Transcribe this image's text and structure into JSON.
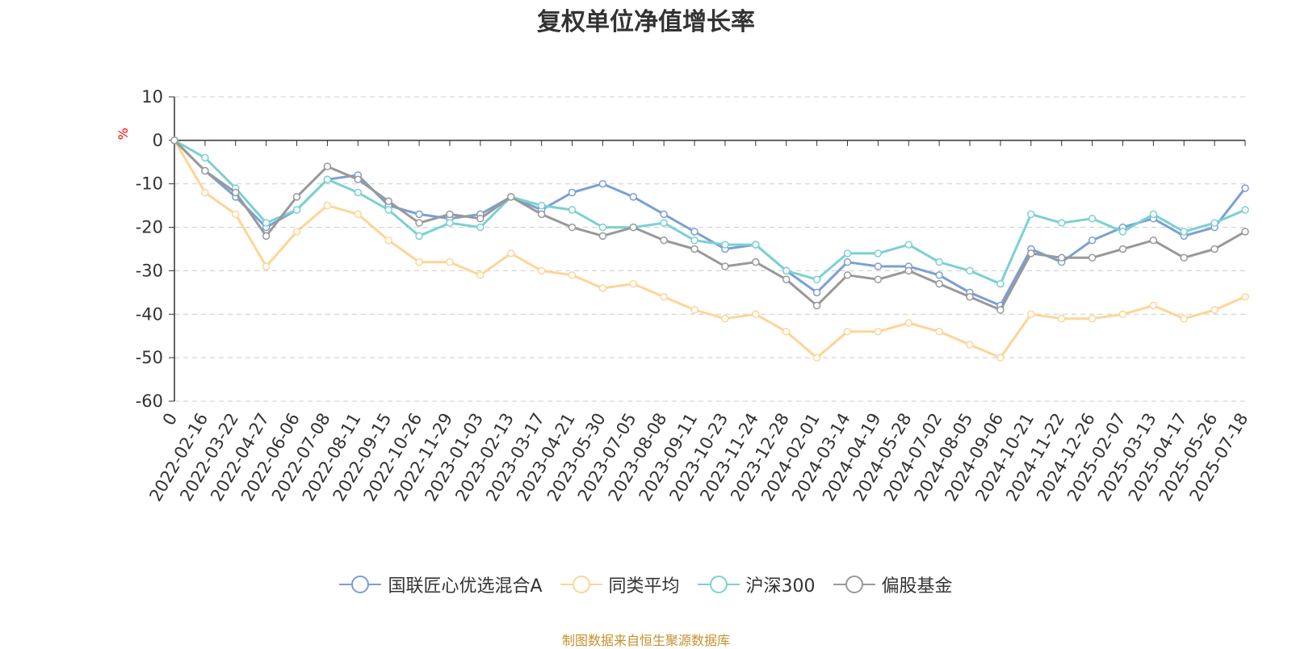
{
  "chart_data": {
    "type": "line",
    "title": "复权单位净值增长率",
    "ylabel": "%",
    "ylim": [
      -60,
      10
    ],
    "yticks": [
      10,
      0,
      -10,
      -20,
      -30,
      -40,
      -50,
      -60
    ],
    "grid": true,
    "legend_position": "bottom-center",
    "x_labels": [
      "0",
      "2022-02-16",
      "2022-03-22",
      "2022-04-27",
      "2022-06-06",
      "2022-07-08",
      "2022-08-11",
      "2022-09-15",
      "2022-10-26",
      "2022-11-29",
      "2023-01-03",
      "2023-02-13",
      "2023-03-17",
      "2023-04-21",
      "2023-05-30",
      "2023-07-05",
      "2023-08-08",
      "2023-09-11",
      "2023-10-23",
      "2023-11-24",
      "2023-12-28",
      "2024-02-01",
      "2024-03-14",
      "2024-04-19",
      "2024-05-28",
      "2024-07-02",
      "2024-08-05",
      "2024-09-06",
      "2024-10-21",
      "2024-11-22",
      "2024-12-26",
      "2025-02-07",
      "2025-03-13",
      "2025-04-17",
      "2025-05-26",
      "2025-07-18"
    ],
    "series": [
      {
        "name": "国联匠心优选混合A",
        "color": "#7b9fd6",
        "values": [
          0,
          -7,
          -13,
          -20,
          -16,
          -9,
          -8,
          -15,
          -17,
          -18,
          -17,
          -13,
          -16,
          -12,
          -10,
          -13,
          -17,
          -21,
          -25,
          -24,
          -30,
          -35,
          -28,
          -29,
          -29,
          -31,
          -35,
          -38,
          -25,
          -28,
          -23,
          -20,
          -18,
          -22,
          -20,
          -11
        ]
      },
      {
        "name": "同类平均",
        "color": "#fdd597",
        "values": [
          0,
          -12,
          -17,
          -29,
          -21,
          -15,
          -17,
          -23,
          -28,
          -28,
          -31,
          -26,
          -30,
          -31,
          -34,
          -33,
          -36,
          -39,
          -41,
          -40,
          -44,
          -50,
          -44,
          -44,
          -42,
          -44,
          -47,
          -50,
          -40,
          -41,
          -41,
          -40,
          -38,
          -41,
          -39,
          -36
        ]
      },
      {
        "name": "沪深300",
        "color": "#7bd1d1",
        "values": [
          0,
          -4,
          -11,
          -19,
          -16,
          -9,
          -12,
          -16,
          -22,
          -19,
          -20,
          -13,
          -15,
          -16,
          -20,
          -20,
          -19,
          -23,
          -24,
          -24,
          -30,
          -32,
          -26,
          -26,
          -24,
          -28,
          -30,
          -33,
          -17,
          -19,
          -18,
          -21,
          -17,
          -21,
          -19,
          -16
        ]
      },
      {
        "name": "偏股基金",
        "color": "#999999",
        "values": [
          0,
          -7,
          -12,
          -22,
          -13,
          -6,
          -9,
          -14,
          -19,
          -17,
          -18,
          -13,
          -17,
          -20,
          -22,
          -20,
          -23,
          -25,
          -29,
          -28,
          -32,
          -38,
          -31,
          -32,
          -30,
          -33,
          -36,
          -39,
          -26,
          -27,
          -27,
          -25,
          -23,
          -27,
          -25,
          -21
        ]
      }
    ]
  },
  "source_text": "制图数据来自恒生聚源数据库"
}
